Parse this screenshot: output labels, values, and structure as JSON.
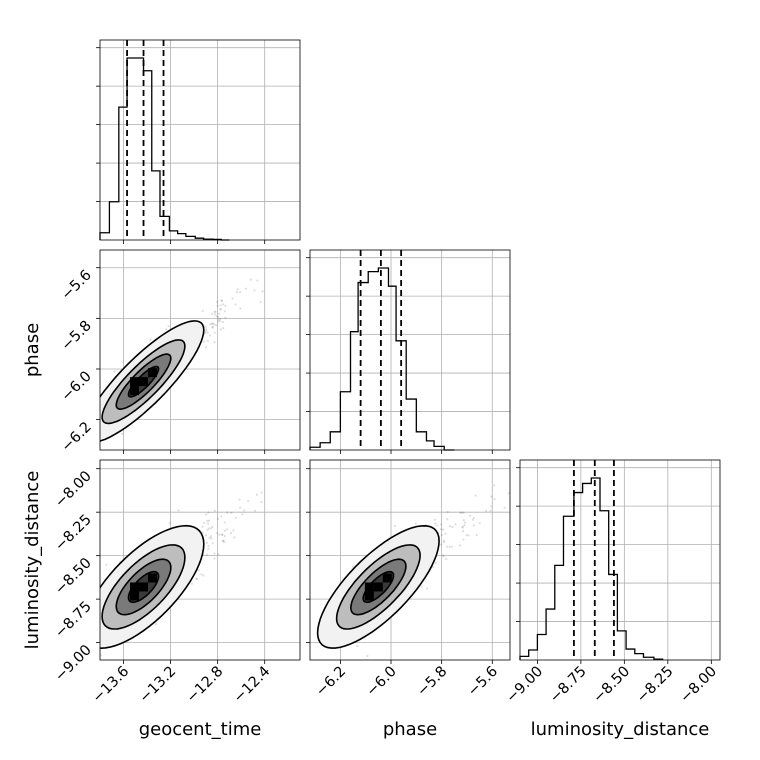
{
  "chart_data": {
    "type": "corner",
    "parameters": [
      {
        "name": "geocent_time",
        "label": "geocent_time",
        "range": [
          -13.8,
          -12.1
        ],
        "ticks": [
          -13.6,
          -13.2,
          -12.8,
          -12.4
        ],
        "tick_labels": [
          "−13.6",
          "−13.2",
          "−12.8",
          "−12.4"
        ],
        "quantiles": [
          -13.57,
          -13.43,
          -13.26
        ],
        "median": -13.43,
        "hist_edges": [
          -13.8,
          -13.72,
          -13.64,
          -13.57,
          -13.5,
          -13.43,
          -13.36,
          -13.29,
          -13.21,
          -13.14,
          -13.07,
          -12.99,
          -12.92,
          -12.84,
          -12.77,
          -12.7
        ],
        "hist_values": [
          0.04,
          0.21,
          0.73,
          1.0,
          1.0,
          0.93,
          0.38,
          0.13,
          0.05,
          0.035,
          0.02,
          0.01,
          0.005,
          0.003,
          0.0
        ]
      },
      {
        "name": "phase",
        "label": "phase",
        "range": [
          -6.32,
          -5.53
        ],
        "ticks": [
          -6.2,
          -6.0,
          -5.8,
          -5.6
        ],
        "tick_labels": [
          "−6.2",
          "−6.0",
          "−5.8",
          "−5.6"
        ],
        "quantiles": [
          -6.12,
          -6.04,
          -5.96
        ],
        "median": -6.04,
        "hist_edges": [
          -6.32,
          -6.28,
          -6.24,
          -6.2,
          -6.16,
          -6.13,
          -6.09,
          -6.05,
          -6.01,
          -5.98,
          -5.94,
          -5.9,
          -5.86,
          -5.83,
          -5.79,
          -5.75
        ],
        "hist_values": [
          0.015,
          0.04,
          0.1,
          0.32,
          0.65,
          0.92,
          0.98,
          1.0,
          0.9,
          0.6,
          0.28,
          0.1,
          0.05,
          0.02,
          0.0
        ]
      },
      {
        "name": "luminosity_distance",
        "label": "luminosity_distance",
        "range": [
          -9.1,
          -7.95
        ],
        "ticks": [
          -9.0,
          -8.75,
          -8.5,
          -8.25,
          -8.0
        ],
        "tick_labels": [
          "−9.00",
          "−8.75",
          "−8.50",
          "−8.25",
          "−8.00"
        ],
        "quantiles": [
          -8.79,
          -8.67,
          -8.56
        ],
        "median": -8.67,
        "hist_edges": [
          -9.1,
          -9.05,
          -9.0,
          -8.95,
          -8.9,
          -8.85,
          -8.79,
          -8.74,
          -8.69,
          -8.64,
          -8.59,
          -8.54,
          -8.49,
          -8.44,
          -8.39,
          -8.33,
          -8.28
        ],
        "hist_values": [
          0.02,
          0.055,
          0.14,
          0.28,
          0.52,
          0.79,
          0.92,
          0.97,
          1.0,
          0.82,
          0.47,
          0.16,
          0.06,
          0.035,
          0.015,
          0.005
        ]
      }
    ],
    "pairs": [
      {
        "x": "geocent_time",
        "y": "phase",
        "mean": [
          -13.43,
          -6.05
        ],
        "sd": [
          0.16,
          0.075
        ],
        "rho": 0.85
      },
      {
        "x": "geocent_time",
        "y": "luminosity_distance",
        "mean": [
          -13.43,
          -8.68
        ],
        "sd": [
          0.16,
          0.11
        ],
        "rho": 0.7
      },
      {
        "x": "phase",
        "y": "luminosity_distance",
        "mean": [
          -6.05,
          -8.68
        ],
        "sd": [
          0.075,
          0.11
        ],
        "rho": 0.75
      }
    ],
    "contour_levels": [
      0.118,
      0.393,
      0.675,
      0.864
    ],
    "grid": true
  }
}
